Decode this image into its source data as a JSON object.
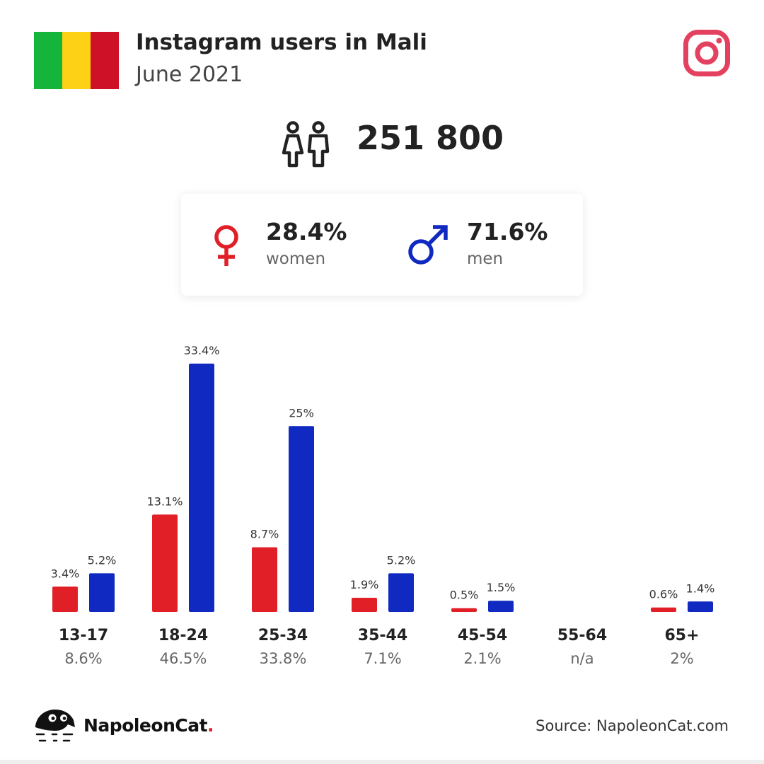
{
  "header": {
    "title": "Instagram users in Mali",
    "subtitle": "June 2021"
  },
  "flag": {
    "stripes": [
      "#14b53a",
      "#fcd116",
      "#ce1126"
    ],
    "icon": "mali-flag-icon"
  },
  "brand_icon": "instagram-icon",
  "total": {
    "value": "251 800",
    "icon": "users-couple-icon"
  },
  "gender": {
    "women": {
      "percent": "28.4%",
      "label": "women",
      "icon": "female-symbol-icon",
      "color": "#e01f27"
    },
    "men": {
      "percent": "71.6%",
      "label": "men",
      "icon": "male-symbol-icon",
      "color": "#1029c0"
    }
  },
  "chart_data": {
    "type": "bar",
    "categories": [
      "13-17",
      "18-24",
      "25-34",
      "35-44",
      "45-54",
      "55-64",
      "65+"
    ],
    "category_totals": [
      "8.6%",
      "46.5%",
      "33.8%",
      "7.1%",
      "2.1%",
      "n/a",
      "2%"
    ],
    "series": [
      {
        "values": [
          3.4,
          13.1,
          8.7,
          1.9,
          0.5,
          null,
          0.6
        ],
        "labels": [
          "3.4%",
          "13.1%",
          "8.7%",
          "1.9%",
          "0.5%",
          "",
          "0.6%"
        ],
        "color": "#e01f27"
      },
      {
        "values": [
          5.2,
          33.4,
          25,
          5.2,
          1.5,
          null,
          1.4
        ],
        "labels": [
          "5.2%",
          "33.4%",
          "25%",
          "5.2%",
          "1.5%",
          "",
          "1.4%"
        ],
        "color": "#1029c0"
      }
    ],
    "ylim": [
      0,
      33.4
    ],
    "grid": false
  },
  "footer": {
    "brand": "NapoleonCat",
    "brand_dot": ".",
    "brand_icon": "napoleoncat-logo-icon",
    "source": "Source: NapoleonCat.com"
  }
}
